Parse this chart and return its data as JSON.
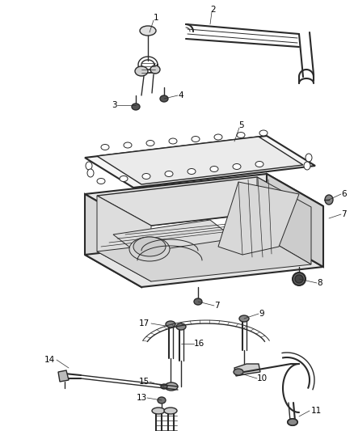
{
  "background_color": "#ffffff",
  "line_color": "#2a2a2a",
  "label_color": "#000000",
  "figsize": [
    4.38,
    5.33
  ],
  "dpi": 100,
  "label_fontsize": 7.5
}
